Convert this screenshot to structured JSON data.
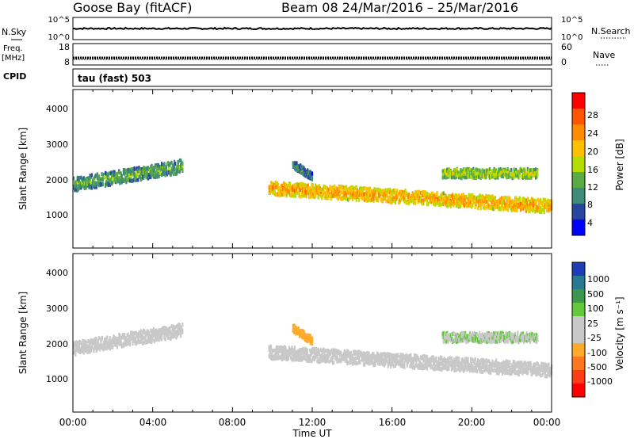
{
  "header": {
    "title": "Goose Bay (fitACF)",
    "beam_date": "Beam 08  24/Mar/2016 – 25/Mar/2016"
  },
  "nsky_panel": {
    "left_label": "N.Sky",
    "left_ticks": [
      "10^5",
      "10^0"
    ],
    "right_label": "N.Search",
    "right_ticks": [
      "10^5",
      "10^0"
    ]
  },
  "freq_panel": {
    "left_label_top": "Freq.",
    "left_label_bottom": "[MHz]",
    "left_ticks": [
      "18",
      "8"
    ],
    "right_label": "Nave",
    "right_ticks": [
      "60",
      "0"
    ]
  },
  "cpid_panel": {
    "label": "CPID",
    "value": "tau (fast) 503"
  },
  "power_panel": {
    "ylabel": "Slant Range [km]",
    "yticks": [
      "4000",
      "3000",
      "2000",
      "1000"
    ],
    "colorbar_label": "Power [dB]",
    "colorbar_ticks": [
      "28",
      "24",
      "20",
      "16",
      "12",
      "8",
      "4"
    ],
    "colorbar_colors": [
      "#ff0000",
      "#ff5500",
      "#ff8c00",
      "#ffc000",
      "#b4dc00",
      "#5aaa46",
      "#3c8c78",
      "#2846a0",
      "#0000ff"
    ]
  },
  "velocity_panel": {
    "ylabel": "Slant Range [km]",
    "yticks": [
      "4000",
      "3000",
      "2000",
      "1000"
    ],
    "colorbar_label": "Velocity [m s⁻¹]",
    "colorbar_ticks": [
      "1000",
      "500",
      "100",
      "25",
      "-25",
      "-100",
      "-500",
      "-1000"
    ],
    "colorbar_colors": [
      "#1e3cb4",
      "#287890",
      "#3c9650",
      "#64c83c",
      "#c8c8c8",
      "#c8c8c8",
      "#ffaa28",
      "#ff781e",
      "#ff3c14",
      "#ff0000"
    ]
  },
  "xaxis": {
    "ticks": [
      "00:00",
      "04:00",
      "08:00",
      "12:00",
      "16:00",
      "20:00",
      "00:00"
    ],
    "label": "Time UT"
  },
  "chart_data": {
    "type": "heatmap",
    "title": "Goose Bay (fitACF)",
    "x_range_hours": [
      0,
      24
    ],
    "y_range_km": [
      180,
      4500
    ],
    "power_range_db": [
      0,
      30
    ],
    "velocity_range_ms": [
      -1000,
      1000
    ],
    "bands": [
      {
        "x": [
          0.0,
          5.5
        ],
        "y_start": 1900,
        "y_end": 2400,
        "width": 350,
        "power": 10,
        "velocity": 0
      },
      {
        "x": [
          9.8,
          24.0
        ],
        "y_start": 1800,
        "y_end": 1300,
        "width": 350,
        "power": 20,
        "velocity": 0
      },
      {
        "x": [
          18.5,
          23.3
        ],
        "y_start": 2200,
        "y_end": 2200,
        "width": 250,
        "power": 14,
        "velocity": 200
      },
      {
        "x": [
          11.0,
          12.0
        ],
        "y_start": 2450,
        "y_end": 2100,
        "width": 200,
        "power": 8,
        "velocity": -300
      }
    ]
  }
}
